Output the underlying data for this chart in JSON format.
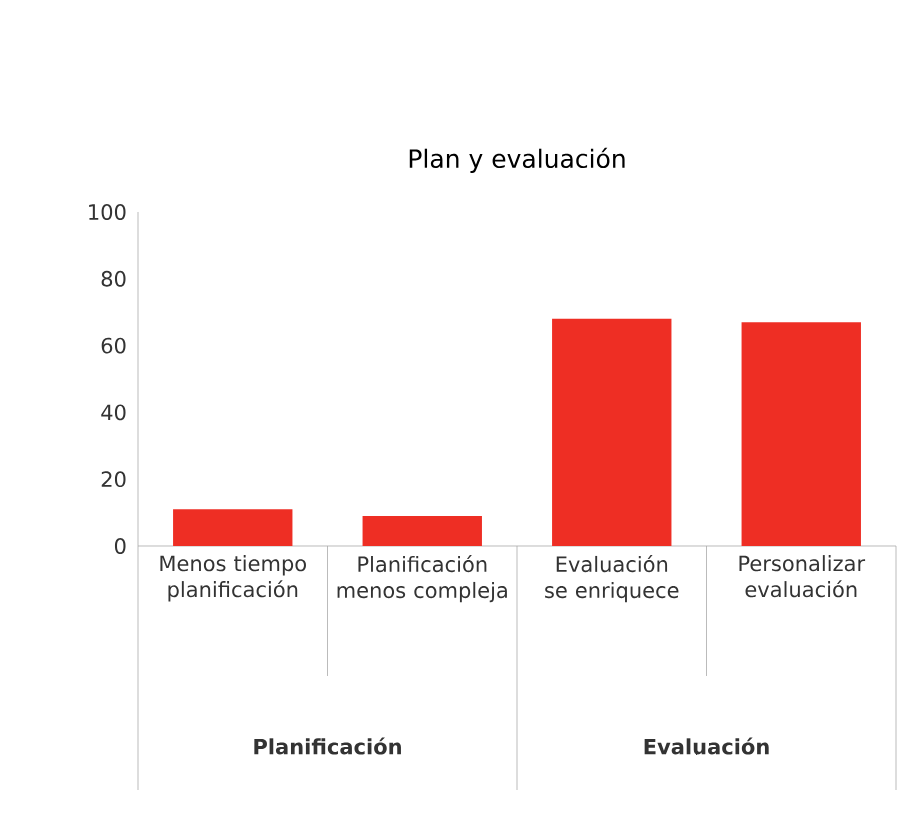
{
  "chart_data": {
    "type": "bar",
    "title": "Plan y evaluación",
    "categories": [
      "Menos tiempo planificación",
      "Planificación menos compleja",
      "Evaluación se enriquece",
      "Personalizar evaluación"
    ],
    "values": [
      11,
      9,
      68,
      67
    ],
    "color": "#ee2e24",
    "ylim": [
      0,
      100
    ],
    "yticks": [
      0,
      20,
      40,
      60,
      80,
      100
    ],
    "annotations": [
      "Planificación",
      "Evaluación"
    ]
  }
}
